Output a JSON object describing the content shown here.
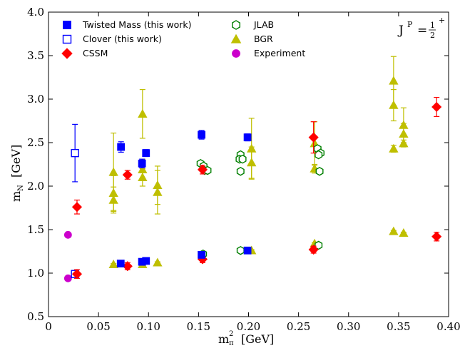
{
  "chart_data": {
    "type": "scatter",
    "xlabel_main": "m",
    "xlabel_sub": "π",
    "xlabel_sup": "2",
    "xlabel_unit": "[GeV]",
    "ylabel_main": "m",
    "ylabel_sub": "N",
    "ylabel_unit": "[GeV]",
    "xlim": [
      0,
      0.4
    ],
    "ylim": [
      0.5,
      4.0
    ],
    "xticks": [
      0,
      0.05,
      0.1,
      0.15,
      0.2,
      0.25,
      0.3,
      0.35,
      0.4
    ],
    "xtick_labels": [
      "0",
      "0.05",
      "0.10",
      "0.15",
      "0.20",
      "0.25",
      "0.30",
      "0.35",
      "0.40"
    ],
    "yticks": [
      0.5,
      1.0,
      1.5,
      2.0,
      2.5,
      3.0,
      3.5,
      4.0
    ],
    "ytick_labels": [
      "0.5",
      "1.0",
      "1.5",
      "2.0",
      "2.5",
      "3.0",
      "3.5",
      "4.0"
    ],
    "annotation": {
      "J": "J",
      "P": "P",
      "eq": "=",
      "num": "1",
      "den": "2",
      "plus": "+"
    },
    "legend_placement": "top-left",
    "series": [
      {
        "name": "Twisted Mass (this work)",
        "marker": "square",
        "filled": true,
        "color": "#0000ff",
        "points": [
          {
            "x": 0.0722,
            "y": 1.11,
            "err": 0.02
          },
          {
            "x": 0.0725,
            "y": 2.45,
            "err": 0.06
          },
          {
            "x": 0.0935,
            "y": 1.13,
            "err": 0.02
          },
          {
            "x": 0.0935,
            "y": 2.26,
            "err": 0.05
          },
          {
            "x": 0.0975,
            "y": 1.14,
            "err": 0.02
          },
          {
            "x": 0.0975,
            "y": 2.38,
            "err": 0.04
          },
          {
            "x": 0.153,
            "y": 1.21,
            "err": 0.02
          },
          {
            "x": 0.153,
            "y": 2.59,
            "err": 0.05
          },
          {
            "x": 0.199,
            "y": 1.26,
            "err": 0.02
          },
          {
            "x": 0.199,
            "y": 2.56,
            "err": 0.04
          }
        ]
      },
      {
        "name": "Clover (this work)",
        "marker": "square",
        "filled": false,
        "color": "#0000ff",
        "points": [
          {
            "x": 0.0265,
            "y": 0.99,
            "err": 0.03
          },
          {
            "x": 0.0265,
            "y": 2.38,
            "err": 0.33
          }
        ]
      },
      {
        "name": "CSSM",
        "marker": "diamond",
        "filled": true,
        "color": "#ff0000",
        "points": [
          {
            "x": 0.0285,
            "y": 0.99,
            "err": 0.05
          },
          {
            "x": 0.0285,
            "y": 1.76,
            "err": 0.08
          },
          {
            "x": 0.079,
            "y": 1.08,
            "err": 0.04
          },
          {
            "x": 0.079,
            "y": 2.13,
            "err": 0.05
          },
          {
            "x": 0.154,
            "y": 1.16,
            "err": 0.04
          },
          {
            "x": 0.154,
            "y": 2.19,
            "err": 0.05
          },
          {
            "x": 0.265,
            "y": 1.27,
            "err": 0.04
          },
          {
            "x": 0.265,
            "y": 2.56,
            "err": 0.18
          },
          {
            "x": 0.388,
            "y": 1.42,
            "err": 0.05
          },
          {
            "x": 0.388,
            "y": 2.91,
            "err": 0.11
          }
        ]
      },
      {
        "name": "Experiment",
        "marker": "circle",
        "filled": true,
        "color": "#cc00cc",
        "points": [
          {
            "x": 0.0195,
            "y": 0.94,
            "err": 0
          },
          {
            "x": 0.0195,
            "y": 1.44,
            "err": 0
          }
        ]
      },
      {
        "name": "JLAB",
        "marker": "hexagon",
        "filled": false,
        "color": "#007f00",
        "points": [
          {
            "x": 0.152,
            "y": 2.26,
            "err": 0
          },
          {
            "x": 0.155,
            "y": 2.23,
            "err": 0
          },
          {
            "x": 0.156,
            "y": 2.18,
            "err": 0
          },
          {
            "x": 0.159,
            "y": 2.18,
            "err": 0
          },
          {
            "x": 0.1545,
            "y": 1.22,
            "err": 0
          },
          {
            "x": 0.192,
            "y": 2.36,
            "err": 0
          },
          {
            "x": 0.191,
            "y": 2.31,
            "err": 0
          },
          {
            "x": 0.194,
            "y": 2.31,
            "err": 0
          },
          {
            "x": 0.192,
            "y": 2.17,
            "err": 0
          },
          {
            "x": 0.192,
            "y": 1.26,
            "err": 0
          },
          {
            "x": 0.269,
            "y": 2.43,
            "err": 0
          },
          {
            "x": 0.272,
            "y": 2.38,
            "err": 0
          },
          {
            "x": 0.27,
            "y": 2.36,
            "err": 0
          },
          {
            "x": 0.271,
            "y": 2.17,
            "err": 0
          },
          {
            "x": 0.27,
            "y": 1.32,
            "err": 0
          }
        ]
      },
      {
        "name": "BGR",
        "marker": "triangle",
        "filled": true,
        "color": "#bfbf00",
        "points": [
          {
            "x": 0.065,
            "y": 1.1,
            "err": 0.01
          },
          {
            "x": 0.065,
            "y": 1.84,
            "err": 0.15
          },
          {
            "x": 0.065,
            "y": 1.92,
            "err": 0.2
          },
          {
            "x": 0.065,
            "y": 2.16,
            "err": 0.45
          },
          {
            "x": 0.094,
            "y": 1.1,
            "err": 0.01
          },
          {
            "x": 0.094,
            "y": 2.1,
            "err": 0.1
          },
          {
            "x": 0.094,
            "y": 2.19,
            "err": 0.12
          },
          {
            "x": 0.094,
            "y": 2.83,
            "err": 0.28
          },
          {
            "x": 0.109,
            "y": 1.12,
            "err": 0.01
          },
          {
            "x": 0.109,
            "y": 1.93,
            "err": 0.25
          },
          {
            "x": 0.109,
            "y": 2.01,
            "err": 0.22
          },
          {
            "x": 0.203,
            "y": 1.26,
            "err": 0.01
          },
          {
            "x": 0.203,
            "y": 2.27,
            "err": 0.18
          },
          {
            "x": 0.203,
            "y": 2.43,
            "err": 0.35
          },
          {
            "x": 0.266,
            "y": 1.34,
            "err": 0.01
          },
          {
            "x": 0.266,
            "y": 2.2,
            "err": 0.05
          },
          {
            "x": 0.266,
            "y": 2.49,
            "err": 0.25
          },
          {
            "x": 0.345,
            "y": 1.48,
            "err": 0.01
          },
          {
            "x": 0.345,
            "y": 2.43,
            "err": 0.04
          },
          {
            "x": 0.345,
            "y": 2.93,
            "err": 0.18
          },
          {
            "x": 0.345,
            "y": 3.21,
            "err": 0.28
          },
          {
            "x": 0.355,
            "y": 1.46,
            "err": 0.01
          },
          {
            "x": 0.355,
            "y": 2.49,
            "err": 0.04
          },
          {
            "x": 0.355,
            "y": 2.6,
            "err": 0.12
          },
          {
            "x": 0.355,
            "y": 2.7,
            "err": 0.2
          }
        ]
      }
    ]
  }
}
